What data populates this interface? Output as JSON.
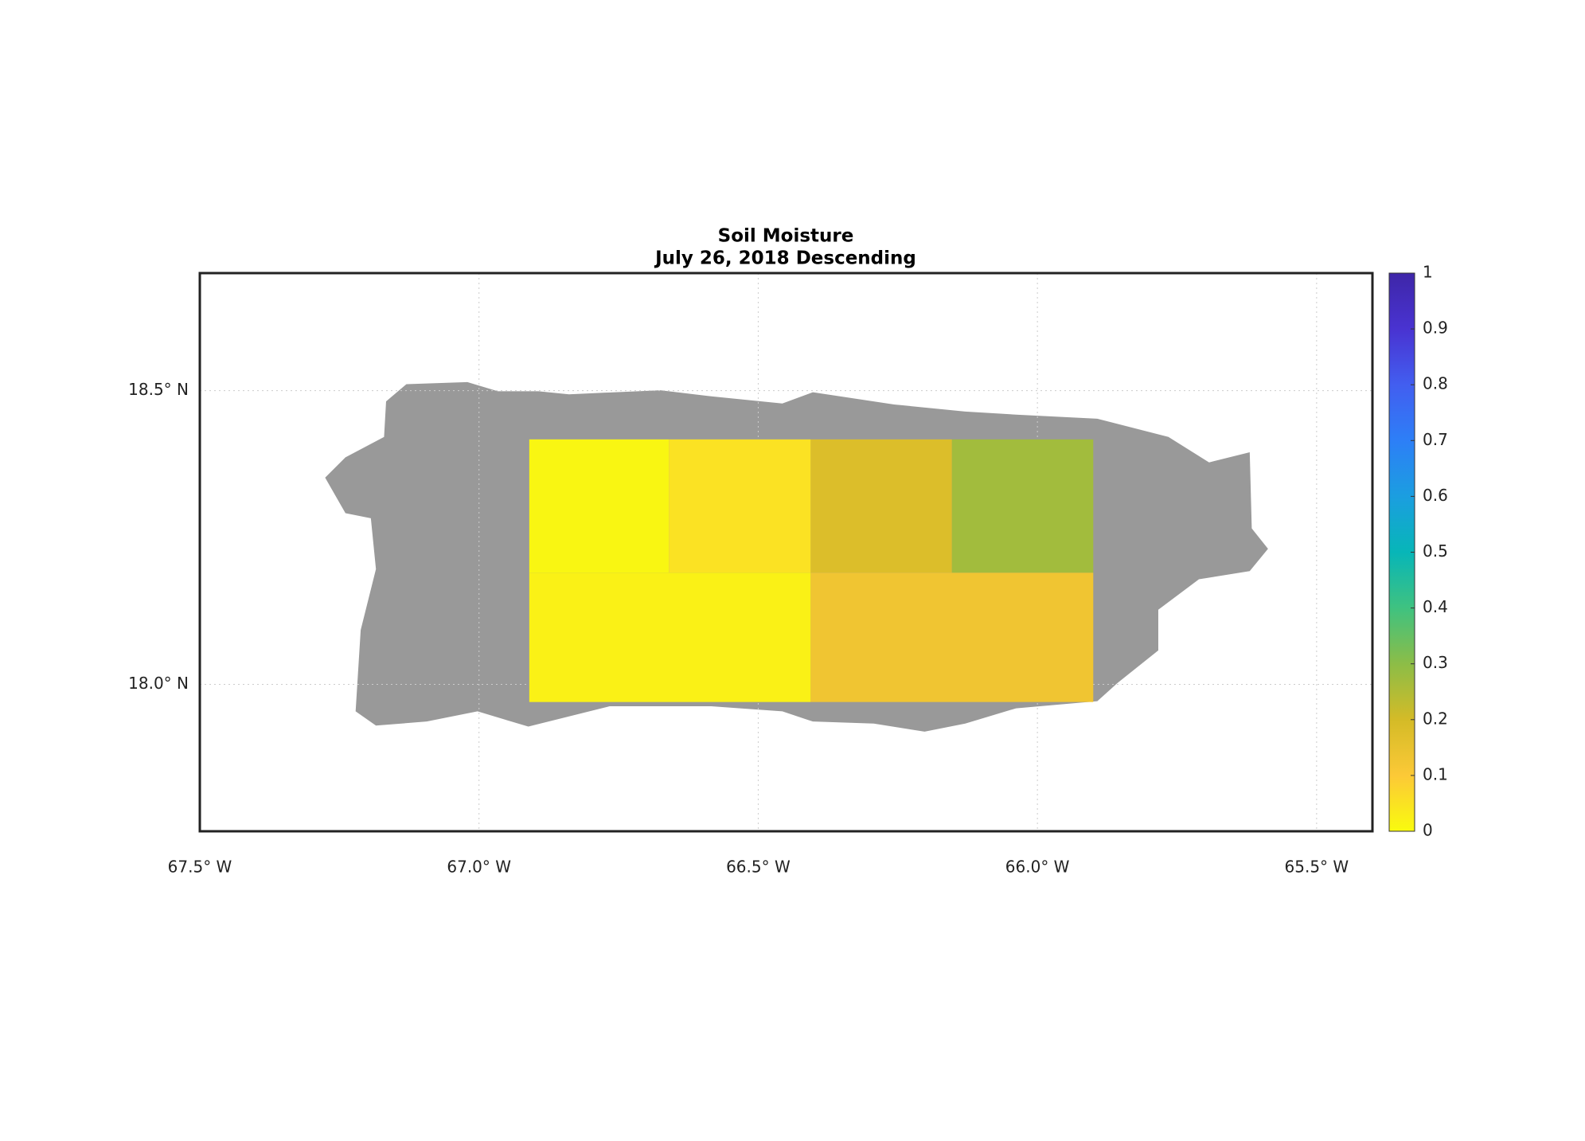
{
  "chart_data": {
    "type": "heatmap",
    "title": "Soil Moisture",
    "subtitle": "July 26, 2018 Descending",
    "xlim": [
      -67.5,
      -65.4
    ],
    "ylim": [
      17.75,
      18.7
    ],
    "xticks": [
      {
        "value": -67.5,
        "label": "67.5° W"
      },
      {
        "value": -67.0,
        "label": "67.0° W"
      },
      {
        "value": -66.5,
        "label": "66.5° W"
      },
      {
        "value": -66.0,
        "label": "66.0° W"
      },
      {
        "value": -65.5,
        "label": "65.5° W"
      }
    ],
    "yticks": [
      {
        "value": 18.0,
        "label": "18.0° N"
      },
      {
        "value": 18.5,
        "label": "18.5° N"
      }
    ],
    "grid": true,
    "land_color": "#999999",
    "cells": [
      {
        "x": [
          -66.91,
          -66.66
        ],
        "y": [
          18.19,
          18.417
        ],
        "value": 0.01
      },
      {
        "x": [
          -66.66,
          -66.406
        ],
        "y": [
          18.19,
          18.417
        ],
        "value": 0.05
      },
      {
        "x": [
          -66.406,
          -66.153
        ],
        "y": [
          18.19,
          18.417
        ],
        "value": 0.18
      },
      {
        "x": [
          -66.153,
          -65.9
        ],
        "y": [
          18.19,
          18.417
        ],
        "value": 0.27
      },
      {
        "x": [
          -66.91,
          -66.406
        ],
        "y": [
          17.97,
          18.19
        ],
        "value": 0.02
      },
      {
        "x": [
          -66.406,
          -65.9
        ],
        "y": [
          17.97,
          18.19
        ],
        "value": 0.13
      }
    ],
    "colorbar": {
      "lim": [
        0,
        1
      ],
      "ticks": [
        0,
        0.1,
        0.2,
        0.3,
        0.4,
        0.5,
        0.6,
        0.7,
        0.8,
        0.9,
        1
      ],
      "colormap": [
        "#f9fb0e",
        "#fcc937",
        "#d4bb27",
        "#8cbd47",
        "#3fc280",
        "#07b6b8",
        "#1b9ee0",
        "#2d7ff7",
        "#425ef0",
        "#4933d1",
        "#3e26a8"
      ]
    }
  }
}
